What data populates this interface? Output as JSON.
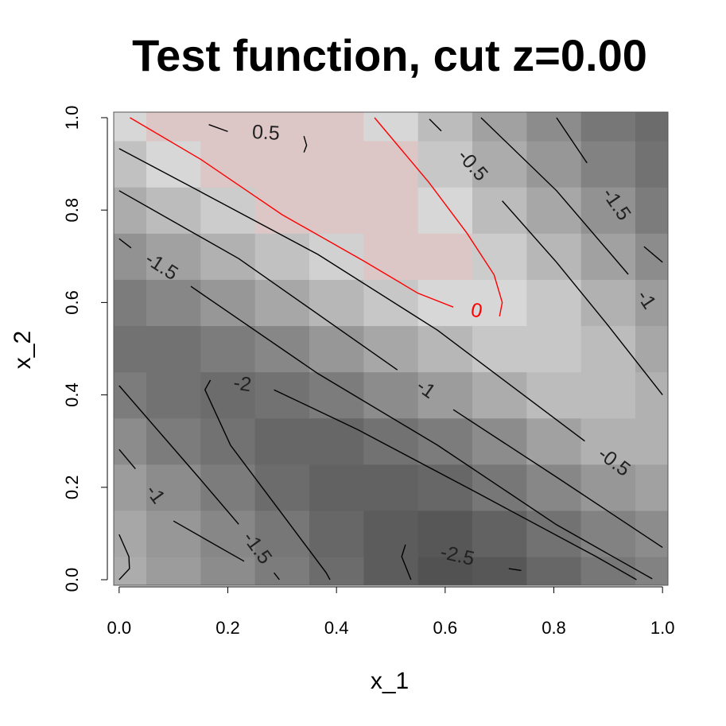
{
  "chart_data": {
    "type": "contour",
    "title": "Test function, cut z=0.00",
    "xlabel": "x_1",
    "ylabel": "x_2",
    "xlim": [
      -0.01,
      1.01
    ],
    "ylim": [
      -0.012,
      1.012
    ],
    "xticks": [
      {
        "value": 0,
        "label": "0.0"
      },
      0.2,
      0.4,
      0.6,
      0.8,
      {
        "value": 1,
        "label": "1.0"
      }
    ],
    "yticks": [
      {
        "value": 0,
        "label": "0.0"
      },
      0.2,
      0.4,
      0.6,
      0.8,
      {
        "value": 1,
        "label": "1.0"
      }
    ],
    "colors": {
      "low": "#474747",
      "high": "#dcdcdc",
      "positive": "#dcc6c6",
      "zmin": -2.8,
      "zmax": 0
    },
    "x": [
      0,
      0.1,
      0.2,
      0.3,
      0.4,
      0.5,
      0.6,
      0.7,
      0.8,
      0.9,
      1.0
    ],
    "y": [
      0,
      0.1,
      0.2,
      0.3,
      0.4,
      0.5,
      0.6,
      0.7,
      0.8,
      0.9,
      1.0
    ],
    "z": [
      [
        -0.9,
        -1.2,
        -1.5,
        -1.8,
        -2.1,
        -2.4,
        -2.6,
        -2.5,
        -2.2,
        -1.9,
        -1.7
      ],
      [
        -1.0,
        -1.3,
        -1.6,
        -1.9,
        -2.2,
        -2.4,
        -2.5,
        -2.3,
        -2.0,
        -1.7,
        -1.5
      ],
      [
        -1.2,
        -1.5,
        -1.8,
        -2.1,
        -2.3,
        -2.3,
        -2.2,
        -1.9,
        -1.6,
        -1.3,
        -1.1
      ],
      [
        -1.5,
        -1.8,
        -2.0,
        -2.2,
        -2.2,
        -2.0,
        -1.8,
        -1.5,
        -1.1,
        -0.8,
        -0.8
      ],
      [
        -1.8,
        -2.0,
        -2.1,
        -2.0,
        -1.8,
        -1.5,
        -1.2,
        -0.9,
        -0.6,
        -0.6,
        -0.8
      ],
      [
        -2.0,
        -2.0,
        -1.8,
        -1.6,
        -1.3,
        -1.0,
        -0.7,
        -0.4,
        -0.4,
        -0.6,
        -1.0
      ],
      [
        -1.8,
        -1.6,
        -1.3,
        -1.0,
        -0.7,
        -0.4,
        -0.1,
        -0.1,
        -0.4,
        -0.8,
        -1.2
      ],
      [
        -1.4,
        -1.1,
        -0.8,
        -0.5,
        -0.2,
        0.1,
        0.1,
        -0.3,
        -0.7,
        -1.1,
        -1.5
      ],
      [
        -0.9,
        -0.6,
        -0.3,
        0.1,
        0.2,
        0.2,
        -0.1,
        -0.6,
        -1.0,
        -1.4,
        -1.8
      ],
      [
        -0.5,
        -0.1,
        0.2,
        0.3,
        0.3,
        0.1,
        -0.4,
        -0.9,
        -1.3,
        -1.7,
        -2.0
      ],
      [
        -0.1,
        0.2,
        0.5,
        0.5,
        0.3,
        -0.1,
        -0.6,
        -1.1,
        -1.5,
        -1.9,
        -2.1
      ]
    ],
    "contours": [
      {
        "level": 0.5,
        "label": "0.5",
        "color": "#000000",
        "x": [
          0.165,
          0.2,
          null,
          0.34,
          0.345,
          0.34
        ],
        "y": [
          0.985,
          0.97,
          null,
          0.96,
          0.94,
          0.925
        ]
      },
      {
        "level": 0,
        "label": "0",
        "color": "#ff0000",
        "x": [
          0.02,
          0.15,
          0.3,
          0.45,
          0.55,
          0.615,
          null,
          0.7,
          0.705,
          0.69,
          0.64,
          0.57,
          0.47
        ],
        "y": [
          1.0,
          0.91,
          0.79,
          0.69,
          0.62,
          0.59,
          null,
          0.57,
          0.6,
          0.66,
          0.75,
          0.86,
          1.0
        ]
      },
      {
        "level": -0.5,
        "label": "-0.5",
        "color": "#000000",
        "x": [
          0.571,
          0.593,
          null,
          0.705,
          0.805,
          0.9,
          1.0
        ],
        "y": [
          0.997,
          0.971,
          null,
          0.82,
          0.687,
          0.55,
          0.4
        ]
      },
      {
        "level": -1,
        "label": "-1",
        "color": "#000000",
        "x": [
          0.666,
          0.805,
          0.937,
          null,
          1.0
        ],
        "y": [
          1.0,
          0.842,
          0.661,
          null,
          0.549
        ]
      },
      {
        "level": -1.5,
        "label": "-1.5",
        "color": "#000000",
        "x": [
          0.805,
          0.861,
          null,
          0.966,
          1.0
        ],
        "y": [
          1.0,
          0.902,
          null,
          0.721,
          0.687
        ]
      },
      {
        "level": -0.5,
        "label": "-0.5",
        "color": "#000000",
        "x": [
          0,
          0.146,
          0.366,
          0.586,
          0.857
        ],
        "y": [
          0.933,
          0.842,
          0.704,
          0.54,
          0.3
        ]
      },
      {
        "level": -1,
        "label": "-1",
        "color": "#000000",
        "x": [
          0,
          0.22,
          0.512,
          null,
          0.615,
          0.805,
          1.0
        ],
        "y": [
          0.842,
          0.695,
          0.454,
          null,
          0.368,
          0.222,
          0.07
        ]
      },
      {
        "level": -1.5,
        "label": "-1.5",
        "color": "#000000",
        "x": [
          0,
          0.022,
          null,
          0.132,
          0.366,
          0.586,
          0.805,
          0.981
        ],
        "y": [
          0.738,
          0.718,
          null,
          0.635,
          0.446,
          0.291,
          0.119,
          0.002
        ]
      },
      {
        "level": -2,
        "label": "-2",
        "color": "#000000",
        "x": [
          0.388,
          0.381,
          0.293,
          0.205,
          0.158,
          0.168,
          null,
          0.285,
          0.439,
          0.659,
          0.878,
          0.952
        ],
        "y": [
          0,
          0.015,
          0.153,
          0.291,
          0.411,
          0.432,
          null,
          0.411,
          0.325,
          0.188,
          0.05,
          0
        ]
      },
      {
        "level": -1.5,
        "label": "-1.5",
        "color": "#000000",
        "x": [
          0,
          0.146,
          0.22,
          null,
          0.285,
          0.295
        ],
        "y": [
          0.42,
          0.222,
          0.12,
          null,
          0.015,
          0
        ]
      },
      {
        "level": -1,
        "label": "-1",
        "color": "#000000",
        "x": [
          0,
          0.03,
          null,
          0.1,
          0.2,
          0.23
        ],
        "y": [
          0.282,
          0.24,
          null,
          0.127,
          0.06,
          0.04
        ]
      },
      {
        "level": -1,
        "color": "#000000",
        "x": [
          0,
          0.018,
          0.019,
          0
        ],
        "y": [
          0.098,
          0.05,
          0.024,
          0
        ]
      },
      {
        "level": -2.5,
        "label": "-2.5",
        "color": "#000000",
        "x": [
          0.537,
          0.52,
          0.527,
          null,
          0.717,
          0.74
        ],
        "y": [
          0,
          0.05,
          0.076,
          null,
          0.024,
          0.02
        ]
      }
    ]
  }
}
